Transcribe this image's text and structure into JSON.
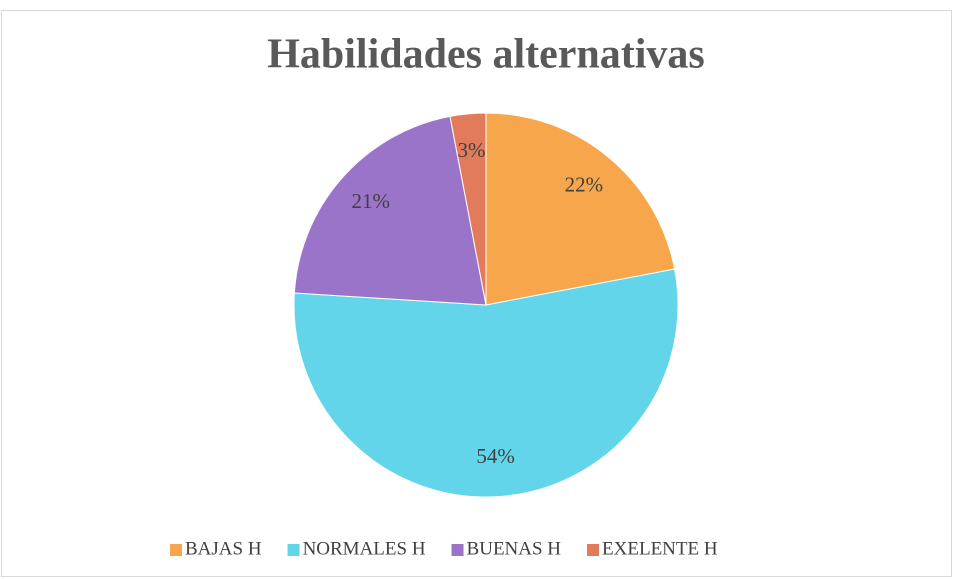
{
  "chart_data": {
    "type": "pie",
    "title": "Habilidades alternativas",
    "categories": [
      "BAJAS H",
      "NORMALES H",
      "BUENAS H",
      "EXELENTE H"
    ],
    "values": [
      22,
      54,
      21,
      3
    ],
    "value_labels": [
      "22%",
      "54%",
      "21%",
      "3%"
    ],
    "colors": [
      "#f8a64c",
      "#62d5ea",
      "#9a74c8",
      "#e27b5c"
    ],
    "legend": "bottom"
  }
}
